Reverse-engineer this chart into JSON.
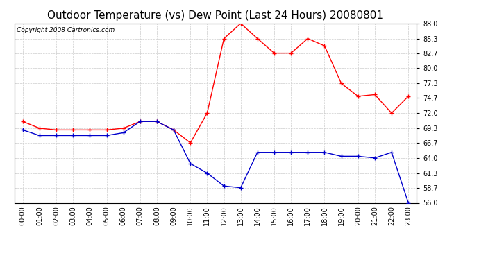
{
  "title": "Outdoor Temperature (vs) Dew Point (Last 24 Hours) 20080801",
  "copyright_text": "Copyright 2008 Cartronics.com",
  "hours": [
    "00:00",
    "01:00",
    "02:00",
    "03:00",
    "04:00",
    "05:00",
    "06:00",
    "07:00",
    "08:00",
    "09:00",
    "10:00",
    "11:00",
    "12:00",
    "13:00",
    "14:00",
    "15:00",
    "16:00",
    "17:00",
    "18:00",
    "19:00",
    "20:00",
    "21:00",
    "22:00",
    "23:00"
  ],
  "temp_red": [
    70.5,
    69.3,
    69.0,
    69.0,
    69.0,
    69.0,
    69.3,
    70.5,
    70.5,
    69.0,
    66.7,
    72.0,
    85.3,
    88.0,
    85.3,
    82.7,
    82.7,
    85.3,
    84.0,
    77.3,
    75.0,
    75.3,
    72.0,
    75.0
  ],
  "dew_blue": [
    69.0,
    68.0,
    68.0,
    68.0,
    68.0,
    68.0,
    68.5,
    70.5,
    70.5,
    69.0,
    63.0,
    61.3,
    59.0,
    58.7,
    65.0,
    65.0,
    65.0,
    65.0,
    65.0,
    64.3,
    64.3,
    64.0,
    65.0,
    56.0
  ],
  "ylim_min": 56.0,
  "ylim_max": 88.0,
  "yticks": [
    56.0,
    58.7,
    61.3,
    64.0,
    66.7,
    69.3,
    72.0,
    74.7,
    77.3,
    80.0,
    82.7,
    85.3,
    88.0
  ],
  "bg_color": "#ffffff",
  "grid_color": "#cccccc",
  "line_color_red": "#ff0000",
  "line_color_blue": "#0000cc",
  "title_fontsize": 11,
  "copyright_fontsize": 6.5
}
